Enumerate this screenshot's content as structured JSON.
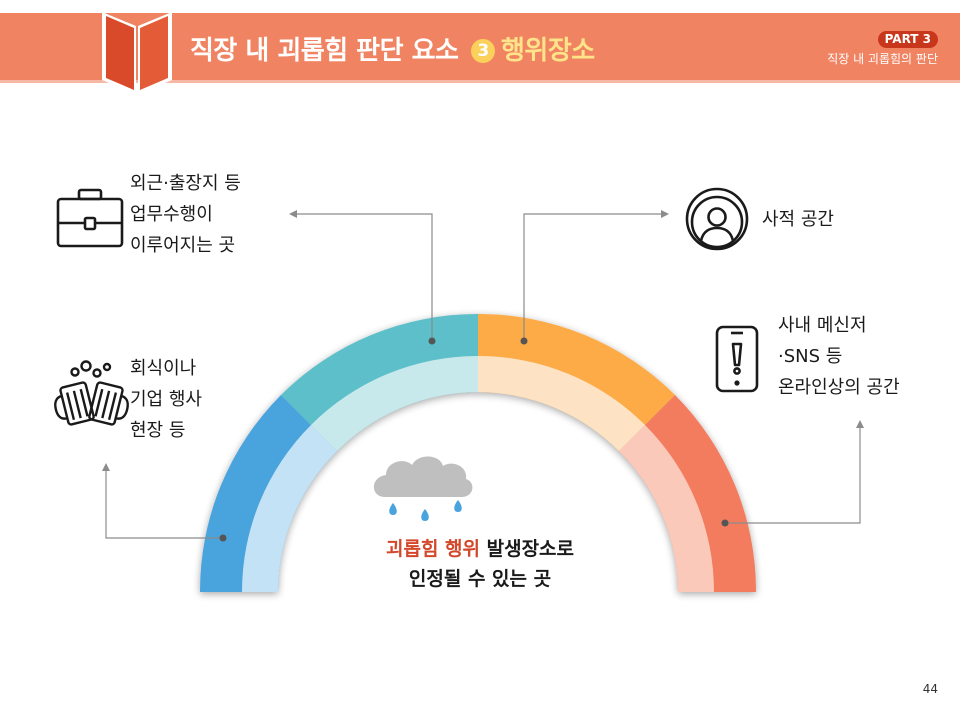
{
  "header": {
    "title_prefix": "직장 내 괴롭힘 판단 요소",
    "step_number": "3",
    "title_highlight": "행위장소",
    "part_label": "PART 3",
    "part_subtitle": "직장 내 괴롭힘의 판단"
  },
  "categories": [
    {
      "id": "work-travel",
      "icon": "briefcase-icon",
      "lines": [
        "외근·출장지 등",
        "업무수행이",
        "이루어지는 곳"
      ]
    },
    {
      "id": "dinner-events",
      "icon": "beer-mugs-icon",
      "lines": [
        "회식이나",
        "기업 행사",
        "현장 등"
      ]
    },
    {
      "id": "private-space",
      "icon": "person-avatar-icon",
      "lines": [
        "사적 공간"
      ]
    },
    {
      "id": "online-space",
      "icon": "smartphone-alert-icon",
      "lines": [
        "사내 메신저",
        "·SNS 등",
        "온라인상의 공간"
      ]
    }
  ],
  "center": {
    "accent_text": "괴롭힘 행위",
    "rest_text": " 발생장소로",
    "line2": "인정될 수 있는 곳",
    "icon": "rain-cloud-icon"
  },
  "colors": {
    "header": "#f08462",
    "segment_blue": "#4aa3dc",
    "segment_teal": "#5bbfc9",
    "segment_orange": "#fcab46",
    "segment_red": "#f27c5d",
    "accent_text": "#d3472a"
  },
  "page_number": "44"
}
